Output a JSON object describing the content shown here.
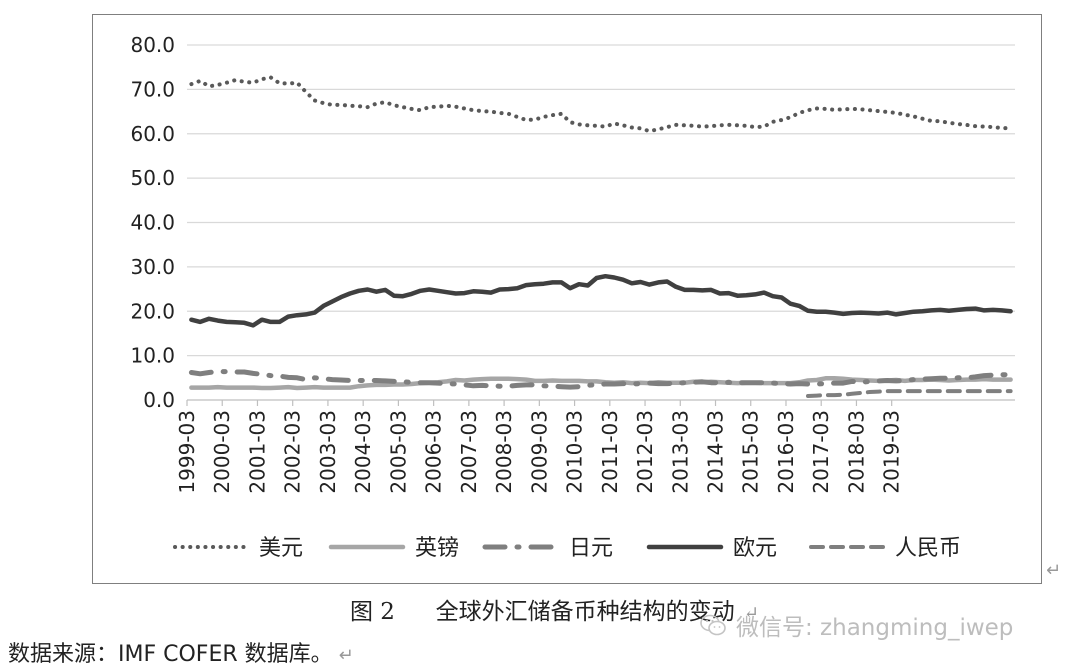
{
  "chart_data": {
    "type": "line",
    "ylim": [
      0,
      80
    ],
    "y_ticks": [
      "0.0",
      "10.0",
      "20.0",
      "30.0",
      "40.0",
      "50.0",
      "60.0",
      "70.0",
      "80.0"
    ],
    "x_ticks": [
      "1999-03",
      "2000-03",
      "2001-03",
      "2002-03",
      "2003-03",
      "2004-03",
      "2005-03",
      "2006-03",
      "2007-03",
      "2008-03",
      "2009-03",
      "2010-03",
      "2011-03",
      "2012-03",
      "2013-03",
      "2014-03",
      "2015-03",
      "2016-03",
      "2017-03",
      "2018-03",
      "2019-03"
    ],
    "grid": true,
    "legend_position": "bottom",
    "series": [
      {
        "name": "美元",
        "style": "dotted",
        "color": "#595959",
        "x_start": 0,
        "values": [
          71.2,
          71.9,
          70.7,
          71.0,
          71.5,
          72.1,
          71.7,
          71.5,
          72.3,
          72.7,
          71.4,
          71.3,
          71.5,
          69.4,
          67.5,
          66.9,
          66.5,
          66.5,
          66.3,
          66.2,
          66.0,
          66.8,
          67.1,
          66.4,
          66.0,
          65.6,
          65.3,
          66.0,
          66.1,
          66.3,
          66.1,
          65.7,
          65.3,
          65.1,
          65.0,
          64.7,
          64.5,
          63.8,
          63.1,
          63.2,
          63.8,
          64.2,
          64.5,
          62.6,
          62.1,
          61.9,
          61.8,
          61.6,
          62.3,
          61.9,
          61.4,
          61.2,
          60.6,
          61.0,
          61.5,
          62.0,
          61.9,
          61.8,
          61.6,
          61.7,
          61.9,
          62.0,
          61.9,
          61.8,
          61.5,
          61.6,
          62.7,
          63.1,
          63.7,
          64.7,
          65.3,
          65.7,
          65.6,
          65.4,
          65.5,
          65.6,
          65.5,
          65.3,
          65.1,
          64.9,
          64.7,
          64.3,
          63.9,
          63.4,
          62.9,
          62.8,
          62.5,
          62.2,
          62.0,
          61.7,
          61.6,
          61.5,
          61.3,
          61.2
        ]
      },
      {
        "name": "英镑",
        "style": "solid",
        "color": "#a6a6a6",
        "x_start": 0,
        "values": [
          2.8,
          2.8,
          2.8,
          2.9,
          2.8,
          2.8,
          2.8,
          2.8,
          2.7,
          2.7,
          2.8,
          2.9,
          2.7,
          2.8,
          2.9,
          2.8,
          2.8,
          2.8,
          2.8,
          3.1,
          3.3,
          3.4,
          3.4,
          3.5,
          3.5,
          3.6,
          3.8,
          3.9,
          4.0,
          4.2,
          4.5,
          4.4,
          4.6,
          4.7,
          4.8,
          4.8,
          4.8,
          4.7,
          4.6,
          4.3,
          4.3,
          4.4,
          4.3,
          4.3,
          4.3,
          4.2,
          4.2,
          4.0,
          3.9,
          4.0,
          3.8,
          3.9,
          3.8,
          4.0,
          3.9,
          3.9,
          3.9,
          4.1,
          4.0,
          4.1,
          4.0,
          3.9,
          3.8,
          3.9,
          3.9,
          3.8,
          3.8,
          3.8,
          3.8,
          4.0,
          4.4,
          4.5,
          4.9,
          4.9,
          4.8,
          4.6,
          4.5,
          4.4,
          4.3,
          4.4,
          4.5,
          4.3,
          4.5,
          4.5,
          4.6,
          4.5,
          4.4,
          4.5,
          4.6,
          4.6,
          4.7,
          4.6,
          4.6,
          4.6
        ]
      },
      {
        "name": "日元",
        "style": "dashdot",
        "color": "#7f7f7f",
        "x_start": 0,
        "values": [
          6.2,
          5.9,
          6.2,
          6.4,
          6.4,
          6.3,
          6.3,
          6.0,
          5.8,
          5.5,
          5.4,
          5.1,
          5.0,
          4.6,
          5.0,
          4.8,
          4.6,
          4.5,
          4.4,
          4.4,
          4.4,
          4.4,
          4.3,
          4.2,
          4.1,
          4.0,
          3.9,
          3.9,
          3.8,
          3.7,
          3.6,
          3.4,
          3.2,
          3.3,
          3.2,
          3.1,
          3.1,
          3.3,
          3.4,
          3.4,
          3.2,
          3.1,
          3.0,
          2.9,
          3.0,
          3.3,
          3.5,
          3.6,
          3.6,
          3.7,
          3.6,
          3.7,
          3.8,
          3.7,
          3.7,
          3.8,
          3.9,
          4.0,
          4.1,
          3.9,
          3.9,
          4.0,
          3.9,
          3.9,
          3.9,
          3.9,
          3.8,
          3.7,
          3.6,
          3.7,
          3.6,
          3.6,
          3.7,
          3.8,
          3.8,
          4.2,
          4.0,
          4.2,
          4.3,
          4.4,
          4.3,
          4.4,
          4.6,
          4.7,
          4.8,
          4.9,
          4.9,
          5.0,
          5.0,
          5.2,
          5.5,
          5.6,
          5.7,
          5.7
        ]
      },
      {
        "name": "欧元",
        "style": "solid",
        "color": "#404040",
        "x_start": 0,
        "values": [
          18.1,
          17.6,
          18.3,
          17.9,
          17.6,
          17.5,
          17.4,
          16.8,
          18.1,
          17.6,
          17.6,
          18.8,
          19.1,
          19.3,
          19.7,
          21.2,
          22.2,
          23.2,
          24.0,
          24.6,
          24.9,
          24.4,
          24.8,
          23.5,
          23.4,
          23.9,
          24.6,
          24.9,
          24.6,
          24.3,
          24.0,
          24.1,
          24.5,
          24.4,
          24.2,
          24.9,
          25.0,
          25.2,
          25.9,
          26.1,
          26.2,
          26.5,
          26.5,
          25.2,
          26.1,
          25.8,
          27.5,
          27.9,
          27.6,
          27.1,
          26.3,
          26.6,
          26.0,
          26.5,
          26.7,
          25.5,
          24.8,
          24.8,
          24.7,
          24.8,
          24.0,
          24.1,
          23.5,
          23.6,
          23.8,
          24.2,
          23.4,
          23.1,
          21.7,
          21.2,
          20.1,
          19.9,
          19.9,
          19.7,
          19.4,
          19.6,
          19.7,
          19.6,
          19.5,
          19.7,
          19.3,
          19.6,
          19.9,
          20.0,
          20.2,
          20.3,
          20.1,
          20.3,
          20.5,
          20.6,
          20.2,
          20.3,
          20.2,
          20.0
        ]
      },
      {
        "name": "人民币",
        "style": "dashed",
        "color": "#7f7f7f",
        "x_start": 70,
        "values": [
          0.9,
          1.0,
          1.1,
          1.1,
          1.2,
          1.4,
          1.6,
          1.8,
          1.9,
          2.0,
          2.0,
          2.0,
          2.0,
          2.0,
          2.0,
          2.0,
          2.0,
          2.0,
          2.0,
          2.0,
          2.0,
          2.0,
          2.0,
          2.0
        ]
      }
    ]
  },
  "caption": {
    "label": "图 2",
    "text": "全球外汇储备币种结构的变动"
  },
  "source": "数据来源：IMF COFER 数据库。",
  "watermark": "微信号: zhangming_iwep",
  "return_mark": "↵"
}
